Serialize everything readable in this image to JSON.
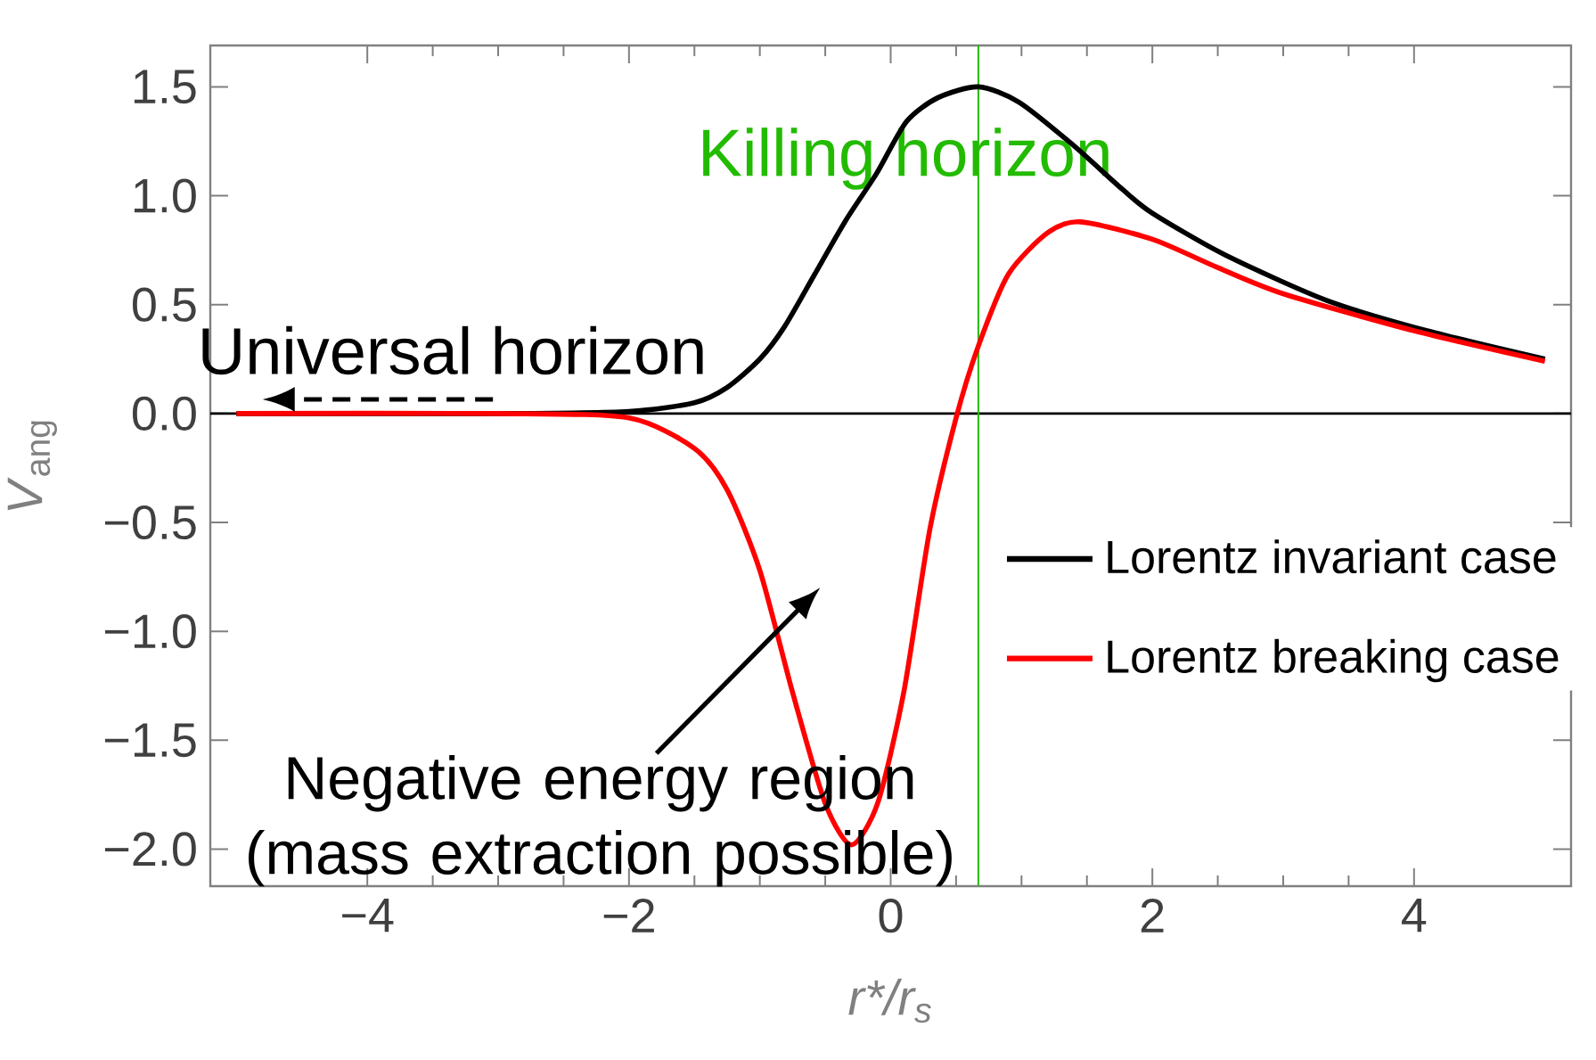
{
  "chart_data": {
    "type": "line",
    "xlabel": "r*/r$_{s}$",
    "ylabel": "*V*$_{ang}$",
    "xlim": [
      -5.2,
      5.2
    ],
    "ylim": [
      -2.17,
      1.69
    ],
    "xticks": [
      {
        "value": -4,
        "label": "−4"
      },
      {
        "value": -2,
        "label": "−2"
      },
      {
        "value": 0,
        "label": "0"
      },
      {
        "value": 2,
        "label": "2"
      },
      {
        "value": 4,
        "label": "4"
      }
    ],
    "yticks": [
      {
        "value": -2,
        "label": "−2.0"
      },
      {
        "value": -1.5,
        "label": "−1.5"
      },
      {
        "value": -1,
        "label": "−1.0"
      },
      {
        "value": -0.5,
        "label": "−0.5"
      },
      {
        "value": 0,
        "label": "0.0"
      },
      {
        "value": 0.5,
        "label": "0.5"
      },
      {
        "value": 1,
        "label": "1.0"
      },
      {
        "value": 1.5,
        "label": "1.5"
      }
    ],
    "series": [
      {
        "name": "Lorentz invariant case",
        "color": "#000000",
        "x": [
          -5,
          -3,
          -2,
          -1.5,
          -1.25,
          -1,
          -0.81,
          -0.58,
          -0.34,
          -0.11,
          0.12,
          0.36,
          0.67,
          0.98,
          1.38,
          1.77,
          2,
          2.55,
          3.33,
          4.1,
          5
        ],
        "values": [
          0,
          0,
          0.01,
          0.05,
          0.12,
          0.25,
          0.4,
          0.64,
          0.89,
          1.1,
          1.34,
          1.45,
          1.5,
          1.43,
          1.24,
          1.03,
          0.92,
          0.73,
          0.52,
          0.38,
          0.25
        ]
      },
      {
        "name": "Lorentz breaking case",
        "color": "#ff0000",
        "x": [
          -5,
          -3,
          -2,
          -1.5,
          -1.25,
          -1,
          -0.75,
          -0.5,
          -0.3,
          -0.1,
          0.1,
          0.3,
          0.5,
          0.67,
          0.9,
          1.2,
          1.45,
          2,
          2.5,
          3,
          4,
          5
        ],
        "values": [
          0,
          0,
          -0.02,
          -0.16,
          -0.35,
          -0.72,
          -1.28,
          -1.79,
          -1.98,
          -1.79,
          -1.28,
          -0.53,
          -0.02,
          0.31,
          0.64,
          0.83,
          0.88,
          0.8,
          0.67,
          0.55,
          0.38,
          0.24
        ]
      }
    ],
    "ref_lines": [
      {
        "axis": "y",
        "value": 0,
        "color": "#000000"
      },
      {
        "axis": "x",
        "value": 0.67,
        "label": "Killing horizon",
        "color": "#22bb00"
      }
    ],
    "annotations": [
      "Universal horizon",
      "Negative energy region (mass extraction possible)"
    ],
    "legend": "right"
  }
}
